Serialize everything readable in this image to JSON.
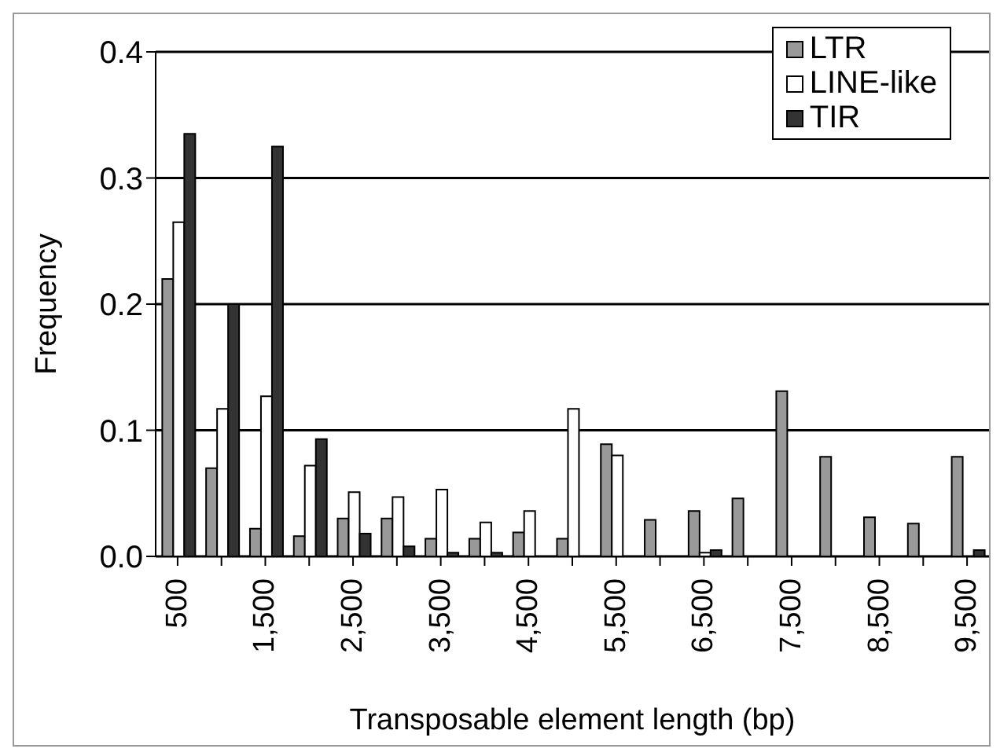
{
  "chart_data": {
    "type": "bar",
    "xlabel": "Transposable element length (bp)",
    "ylabel": "Frequency",
    "categories": [
      "500",
      null,
      "1,500",
      null,
      "2,500",
      null,
      "3,500",
      null,
      "4,500",
      null,
      "5,500",
      null,
      "6,500",
      null,
      "7,500",
      null,
      "8,500",
      null,
      "9,500"
    ],
    "series": [
      {
        "name": "LTR",
        "color": "#999999",
        "values": [
          0.22,
          0.07,
          0.022,
          0.016,
          0.03,
          0.03,
          0.014,
          0.014,
          0.019,
          0.014,
          0.089,
          0.029,
          0.036,
          0.046,
          0.131,
          0.079,
          0.031,
          0.026,
          0.079
        ]
      },
      {
        "name": "LINE-like",
        "color": "#ffffff",
        "values": [
          0.265,
          0.117,
          0.127,
          0.072,
          0.051,
          0.047,
          0.053,
          0.027,
          0.036,
          0.117,
          0.08,
          0,
          0.003,
          0,
          0,
          0,
          0,
          0,
          0
        ]
      },
      {
        "name": "TIR",
        "color": "#333333",
        "values": [
          0.335,
          0.2,
          0.325,
          0.093,
          0.018,
          0.008,
          0.003,
          0.003,
          0,
          0,
          0,
          0,
          0.005,
          0,
          0,
          0,
          0,
          0,
          0.005
        ]
      }
    ],
    "ylim": [
      0,
      0.4
    ],
    "yticks": [
      {
        "value": 0,
        "label": "0.0"
      },
      {
        "value": 0.1,
        "label": "0.1"
      },
      {
        "value": 0.2,
        "label": "0.2"
      },
      {
        "value": 0.3,
        "label": "0.3"
      },
      {
        "value": 0.4,
        "label": "0.4"
      }
    ],
    "grid": "y",
    "legend": "top right"
  }
}
